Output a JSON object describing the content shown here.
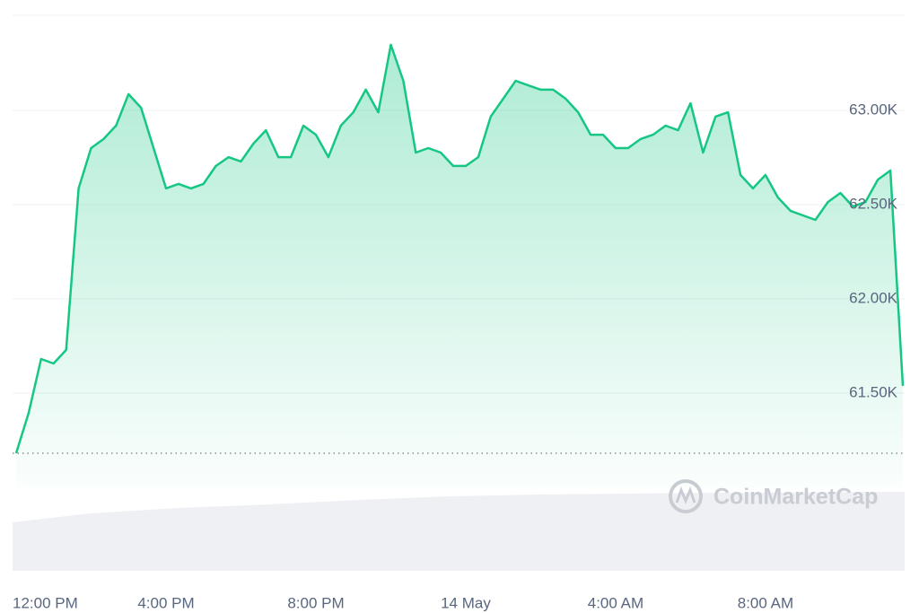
{
  "chart_data": {
    "type": "line",
    "watermark": "CoinMarketCap",
    "categories": [
      "12:00 PM",
      null,
      null,
      null,
      null,
      null,
      null,
      null,
      null,
      null,
      null,
      null,
      "4:00 PM",
      null,
      null,
      null,
      null,
      null,
      null,
      null,
      null,
      null,
      null,
      null,
      "8:00 PM",
      null,
      null,
      null,
      null,
      null,
      null,
      null,
      null,
      null,
      null,
      null,
      "14 May",
      null,
      null,
      null,
      null,
      null,
      null,
      null,
      null,
      null,
      null,
      null,
      "4:00 AM",
      null,
      null,
      null,
      null,
      null,
      null,
      null,
      null,
      null,
      null,
      null,
      "8:00 AM",
      null,
      null,
      null,
      null,
      null,
      null,
      null,
      null,
      null,
      null,
      null
    ],
    "values": [
      61181,
      61395,
      61681,
      61657,
      61729,
      62586,
      62800,
      62848,
      62919,
      63086,
      63014,
      62800,
      62586,
      62610,
      62586,
      62610,
      62705,
      62752,
      62729,
      62824,
      62895,
      62752,
      62752,
      62919,
      62871,
      62752,
      62919,
      62990,
      63110,
      62990,
      63348,
      63157,
      62776,
      62800,
      62776,
      62705,
      62705,
      62752,
      62967,
      63062,
      63157,
      63133,
      63110,
      63110,
      63062,
      62990,
      62871,
      62871,
      62800,
      62800,
      62848,
      62871,
      62919,
      62895,
      63038,
      62776,
      62967,
      62990,
      62657,
      62586,
      62657,
      62538,
      62467,
      62443,
      62419,
      62514,
      62562,
      62490,
      62514,
      62633,
      62681,
      61538
    ],
    "color": "#16c784",
    "ylim": [
      61000,
      63500
    ],
    "yticks": [
      {
        "value": 61500,
        "label": "61.50K"
      },
      {
        "value": 62000,
        "label": "62.00K"
      },
      {
        "value": 62500,
        "label": "62.50K"
      },
      {
        "value": 63000,
        "label": "63.00K"
      }
    ],
    "grid": true
  }
}
